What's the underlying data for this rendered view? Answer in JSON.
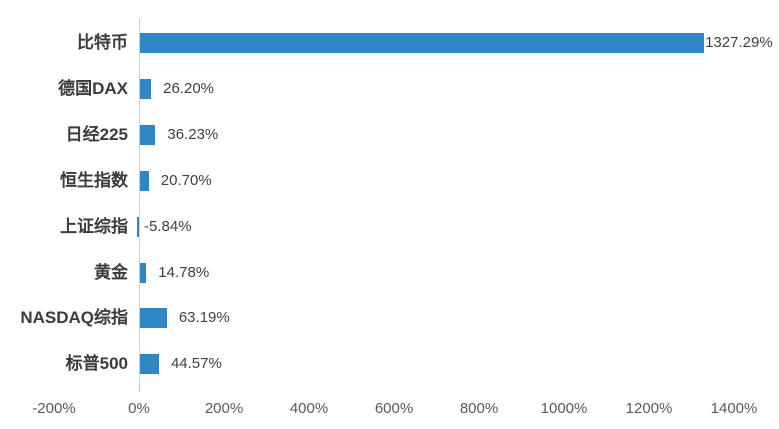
{
  "chart_data": {
    "type": "bar",
    "orientation": "horizontal",
    "title": "",
    "xlabel": "",
    "ylabel": "",
    "grid": false,
    "legend": "none",
    "categories": [
      "比特币",
      "德国DAX",
      "日经225",
      "恒生指数",
      "上证综指",
      "黄金",
      "NASDAQ综指",
      "标普500"
    ],
    "values": [
      1327.29,
      26.2,
      36.23,
      20.7,
      -5.84,
      14.78,
      63.19,
      44.57
    ],
    "value_labels": [
      "1327.29%",
      "26.20%",
      "36.23%",
      "20.70%",
      "-5.84%",
      "14.78%",
      "63.19%",
      "44.57%"
    ],
    "x_tick_labels": [
      "-200%",
      "0%",
      "200%",
      "400%",
      "600%",
      "800%",
      "1000%",
      "1200%",
      "1400%"
    ],
    "x_tick_values": [
      -200,
      0,
      200,
      400,
      600,
      800,
      1000,
      1200,
      1400
    ],
    "xlim": [
      -200,
      1400
    ],
    "bar_color": "#2e86c5",
    "axis_line_color": "#d2d2d2",
    "category_label_color": "#3b3b3b",
    "value_label_color": "#404040",
    "tick_label_color": "#595959",
    "background_color": "#ffffff"
  }
}
